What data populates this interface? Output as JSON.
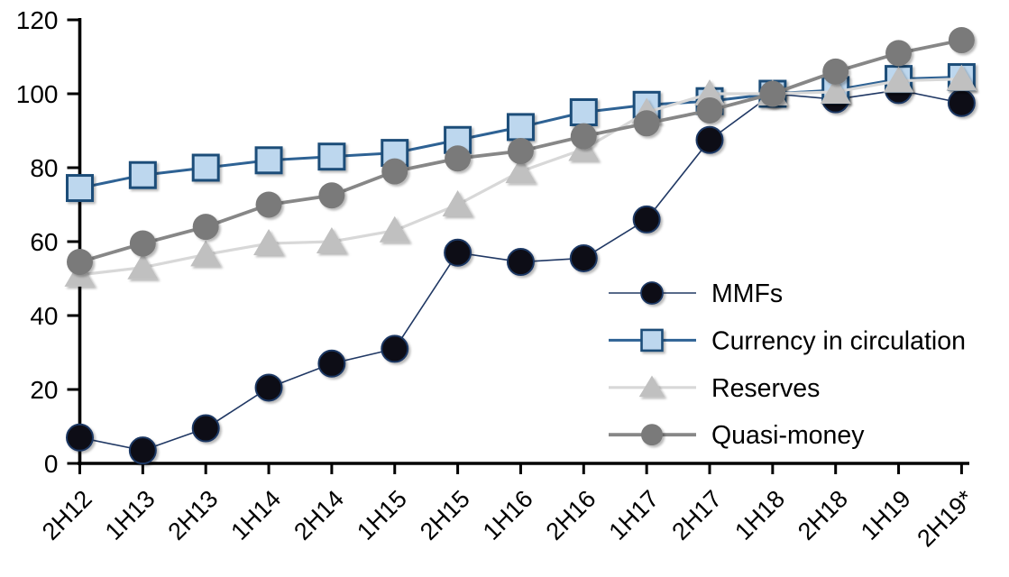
{
  "chart_data": {
    "type": "line",
    "title": "",
    "xlabel": "",
    "ylabel": "",
    "grid": false,
    "legend_position": "inside-right",
    "ylim": [
      0,
      120
    ],
    "y_ticks": [
      0,
      20,
      40,
      60,
      80,
      100,
      120
    ],
    "categories": [
      "2H12",
      "1H13",
      "2H13",
      "1H14",
      "2H14",
      "1H15",
      "2H15",
      "1H16",
      "2H16",
      "1H17",
      "2H17",
      "1H18",
      "2H18",
      "1H19",
      "2H19*"
    ],
    "series": [
      {
        "name": "MMFs",
        "marker": "circle",
        "marker_fill": "#0a0a12",
        "marker_stroke": "#1f3864",
        "line_color": "#203864",
        "line_width": 1.6,
        "values": [
          7,
          3.5,
          9.5,
          20.5,
          27,
          31,
          57,
          54.5,
          55.5,
          66,
          87.5,
          100,
          98.5,
          101,
          97.5
        ]
      },
      {
        "name": "Currency in circulation",
        "marker": "square",
        "marker_fill": "#bdd7ee",
        "marker_stroke": "#1f4e79",
        "line_color": "#2e6294",
        "line_width": 3,
        "values": [
          74.5,
          78,
          80,
          82,
          83,
          84,
          87.5,
          91,
          95,
          97,
          98,
          100,
          101,
          104,
          104.5
        ]
      },
      {
        "name": "Reserves",
        "marker": "triangle",
        "marker_fill": "#c0c0c0",
        "marker_stroke": "none",
        "line_color": "#d8d8d8",
        "line_width": 3.2,
        "values": [
          51,
          53,
          56.5,
          59.5,
          60,
          63,
          70,
          79,
          85,
          95,
          100,
          100,
          100.5,
          103.5,
          104
        ]
      },
      {
        "name": "Quasi-money",
        "marker": "circle",
        "marker_fill": "#7a7a7a",
        "marker_stroke": "none",
        "line_color": "#878787",
        "line_width": 3.8,
        "values": [
          54.5,
          59.5,
          64,
          70,
          72.5,
          79,
          82.5,
          84.5,
          88.5,
          92,
          95.5,
          100,
          106,
          111,
          114.5
        ]
      }
    ],
    "axis_color": "#000000",
    "text_color": "#000000"
  }
}
